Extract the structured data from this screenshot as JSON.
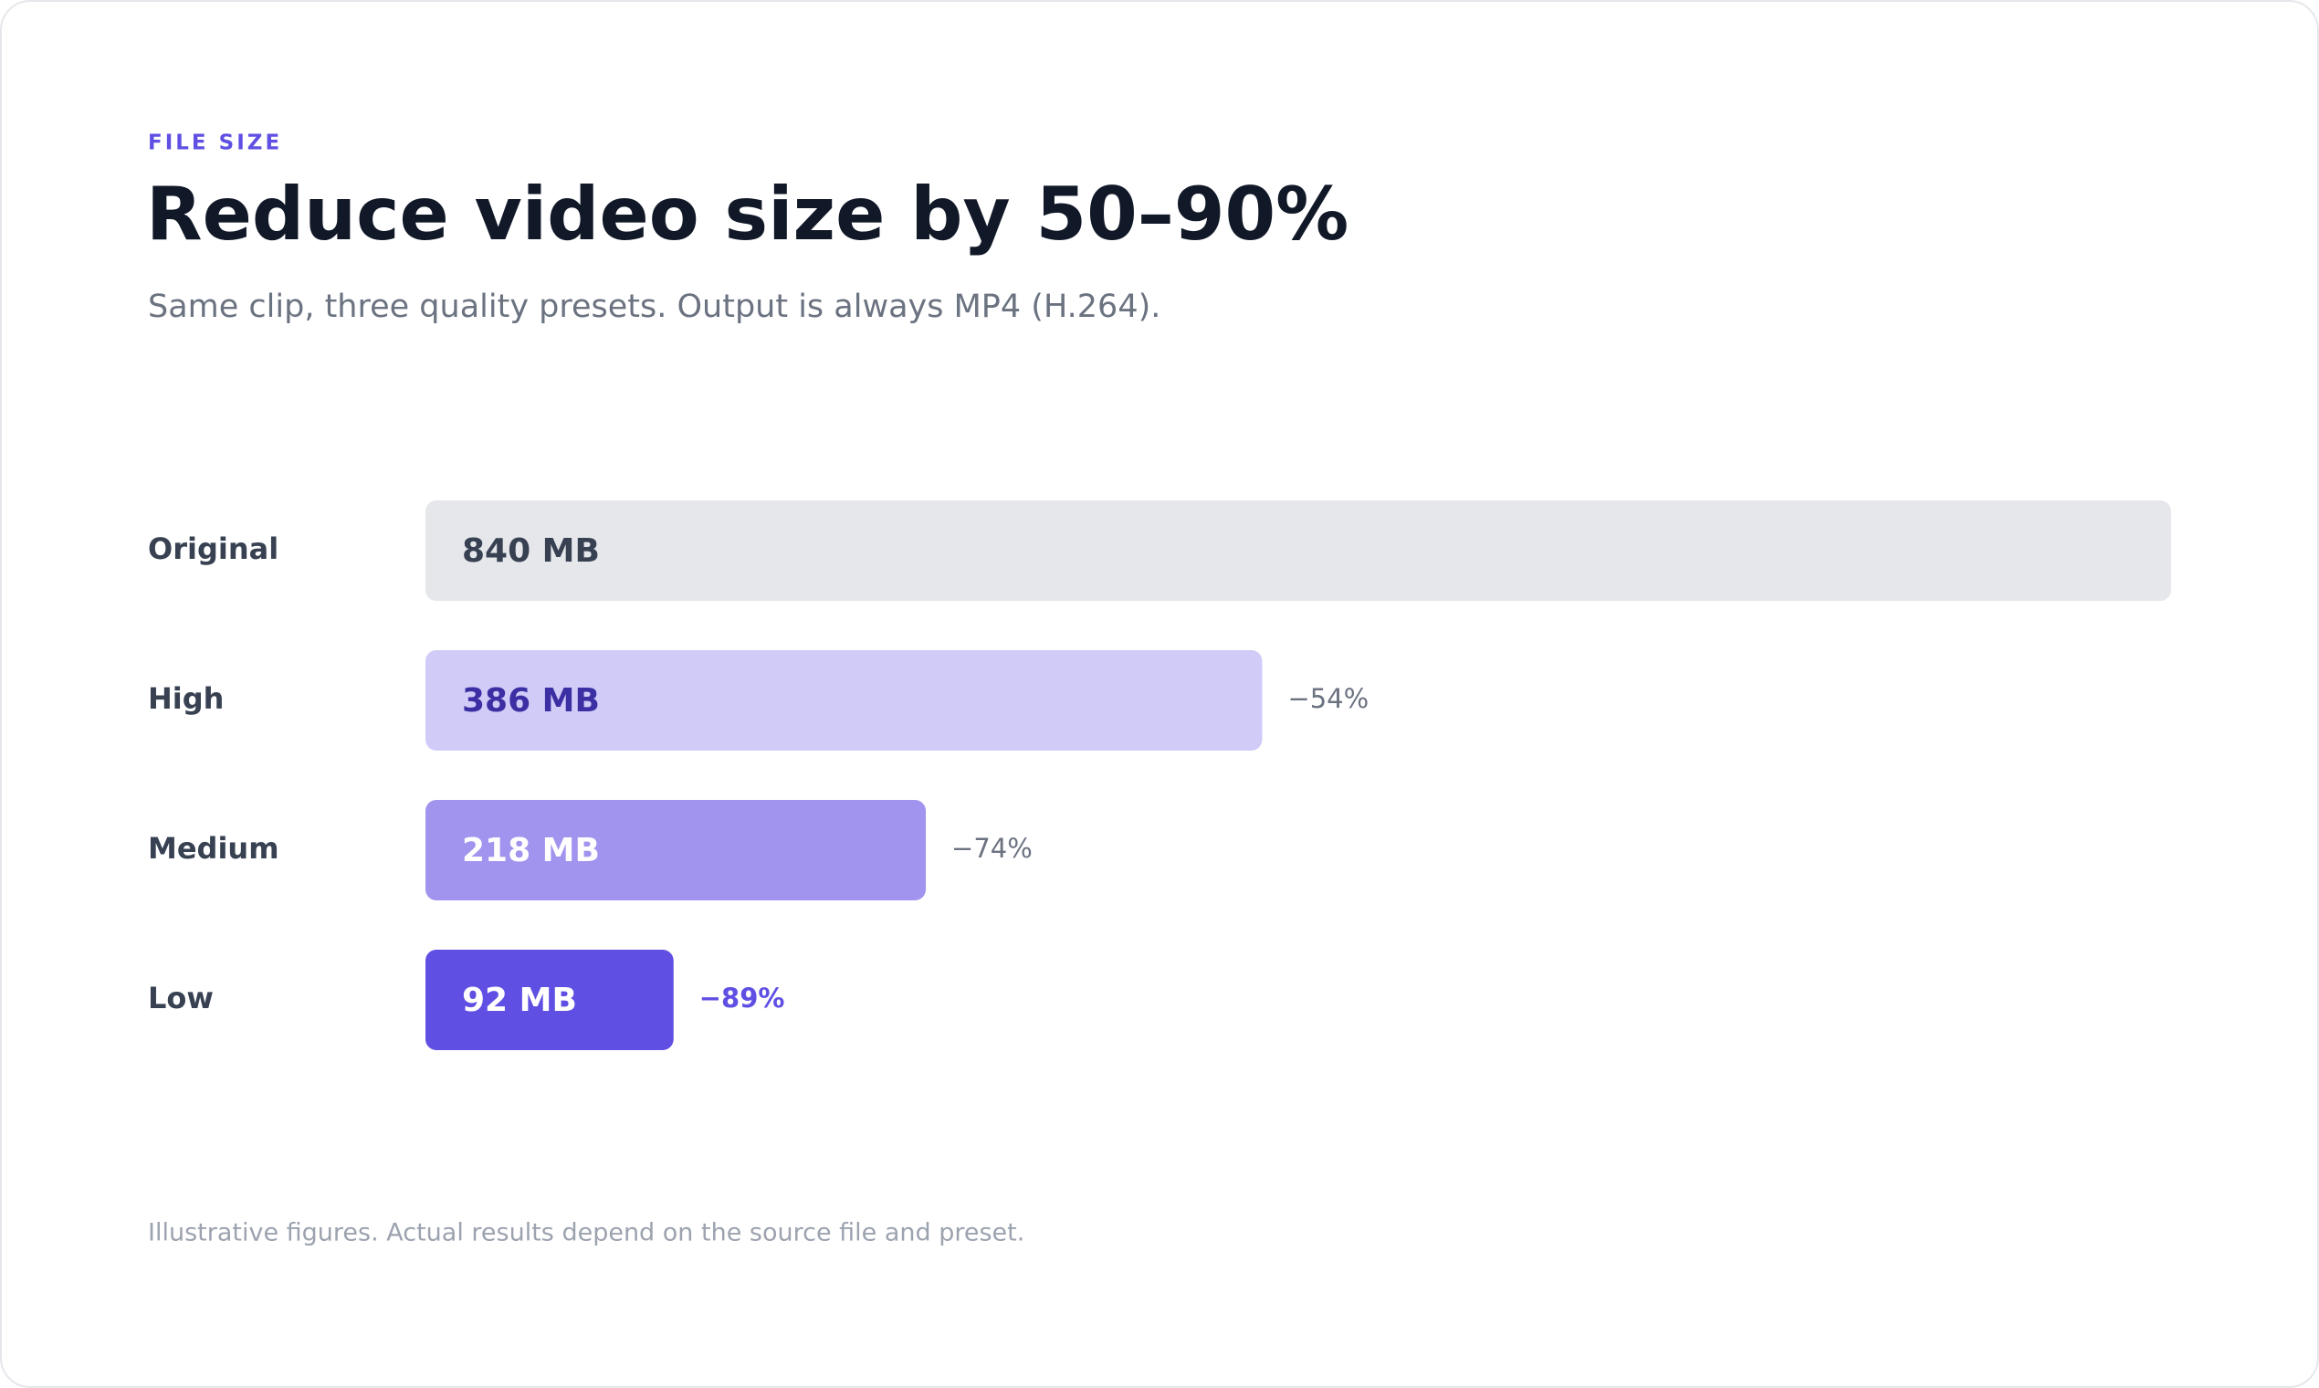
{
  "chart_data": {
    "type": "bar",
    "orientation": "horizontal",
    "kicker": "FILE SIZE",
    "title": "Reduce video size by 50–90%",
    "subtitle": "Same clip, three quality presets. Output is always MP4 (H.264).",
    "categories": [
      "Original",
      "High",
      "Medium",
      "Low"
    ],
    "values": [
      840,
      386,
      218,
      92
    ],
    "value_labels": [
      "840 MB",
      "386 MB",
      "218 MB",
      "92 MB"
    ],
    "change_labels": [
      null,
      "−54%",
      "−74%",
      "−89%"
    ],
    "colors": [
      "#e5e7eb",
      "#d0cbf7",
      "#a094ee",
      "#5f4fe3"
    ],
    "label_colors": [
      "#374151",
      "#3b2fa3",
      "#ffffff",
      "#ffffff"
    ],
    "change_colors": [
      null,
      "#6b7280",
      "#6b7280",
      "#5f4fe3"
    ],
    "note": "Illustrative figures. Actual results depend on the source file and preset."
  }
}
